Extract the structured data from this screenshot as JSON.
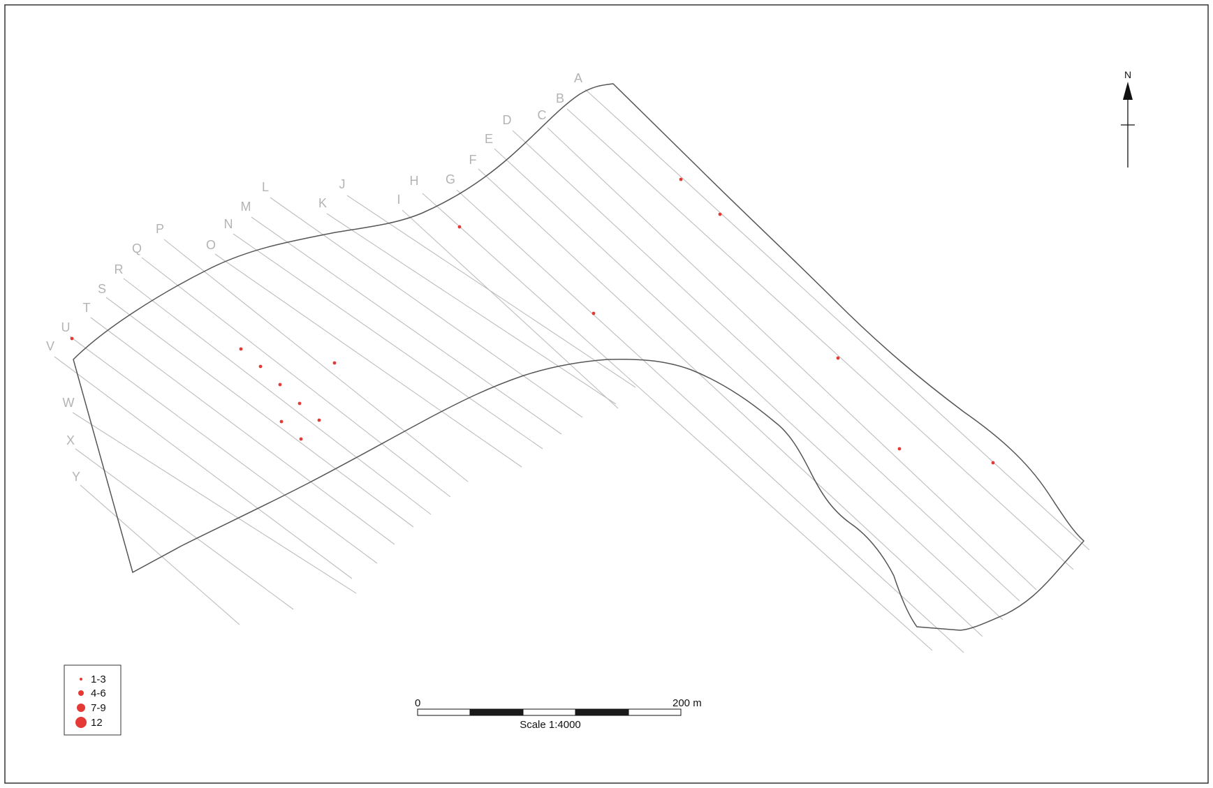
{
  "frame_color": "#333333",
  "transects": [
    {
      "label": "A"
    },
    {
      "label": "B"
    },
    {
      "label": "C"
    },
    {
      "label": "D"
    },
    {
      "label": "E"
    },
    {
      "label": "F"
    },
    {
      "label": "G"
    },
    {
      "label": "H"
    },
    {
      "label": "I"
    },
    {
      "label": "J"
    },
    {
      "label": "K"
    },
    {
      "label": "L"
    },
    {
      "label": "M"
    },
    {
      "label": "N"
    },
    {
      "label": "O"
    },
    {
      "label": "P"
    },
    {
      "label": "Q"
    },
    {
      "label": "R"
    },
    {
      "label": "S"
    },
    {
      "label": "T"
    },
    {
      "label": "U"
    },
    {
      "label": "V"
    },
    {
      "label": "W"
    },
    {
      "label": "X"
    },
    {
      "label": "Y"
    }
  ],
  "transect_color": "#bdbdbd",
  "boundary_color": "#555555",
  "point_color": "#e53935",
  "finds_class": "1-3",
  "legend": {
    "items": [
      {
        "label": "1-3"
      },
      {
        "label": "4-6"
      },
      {
        "label": "7-9"
      },
      {
        "label": "12"
      }
    ]
  },
  "scale_bar": {
    "start_label": "0",
    "end_label": "200 m",
    "caption": "Scale 1:4000"
  },
  "north_arrow": {
    "label": "N"
  }
}
